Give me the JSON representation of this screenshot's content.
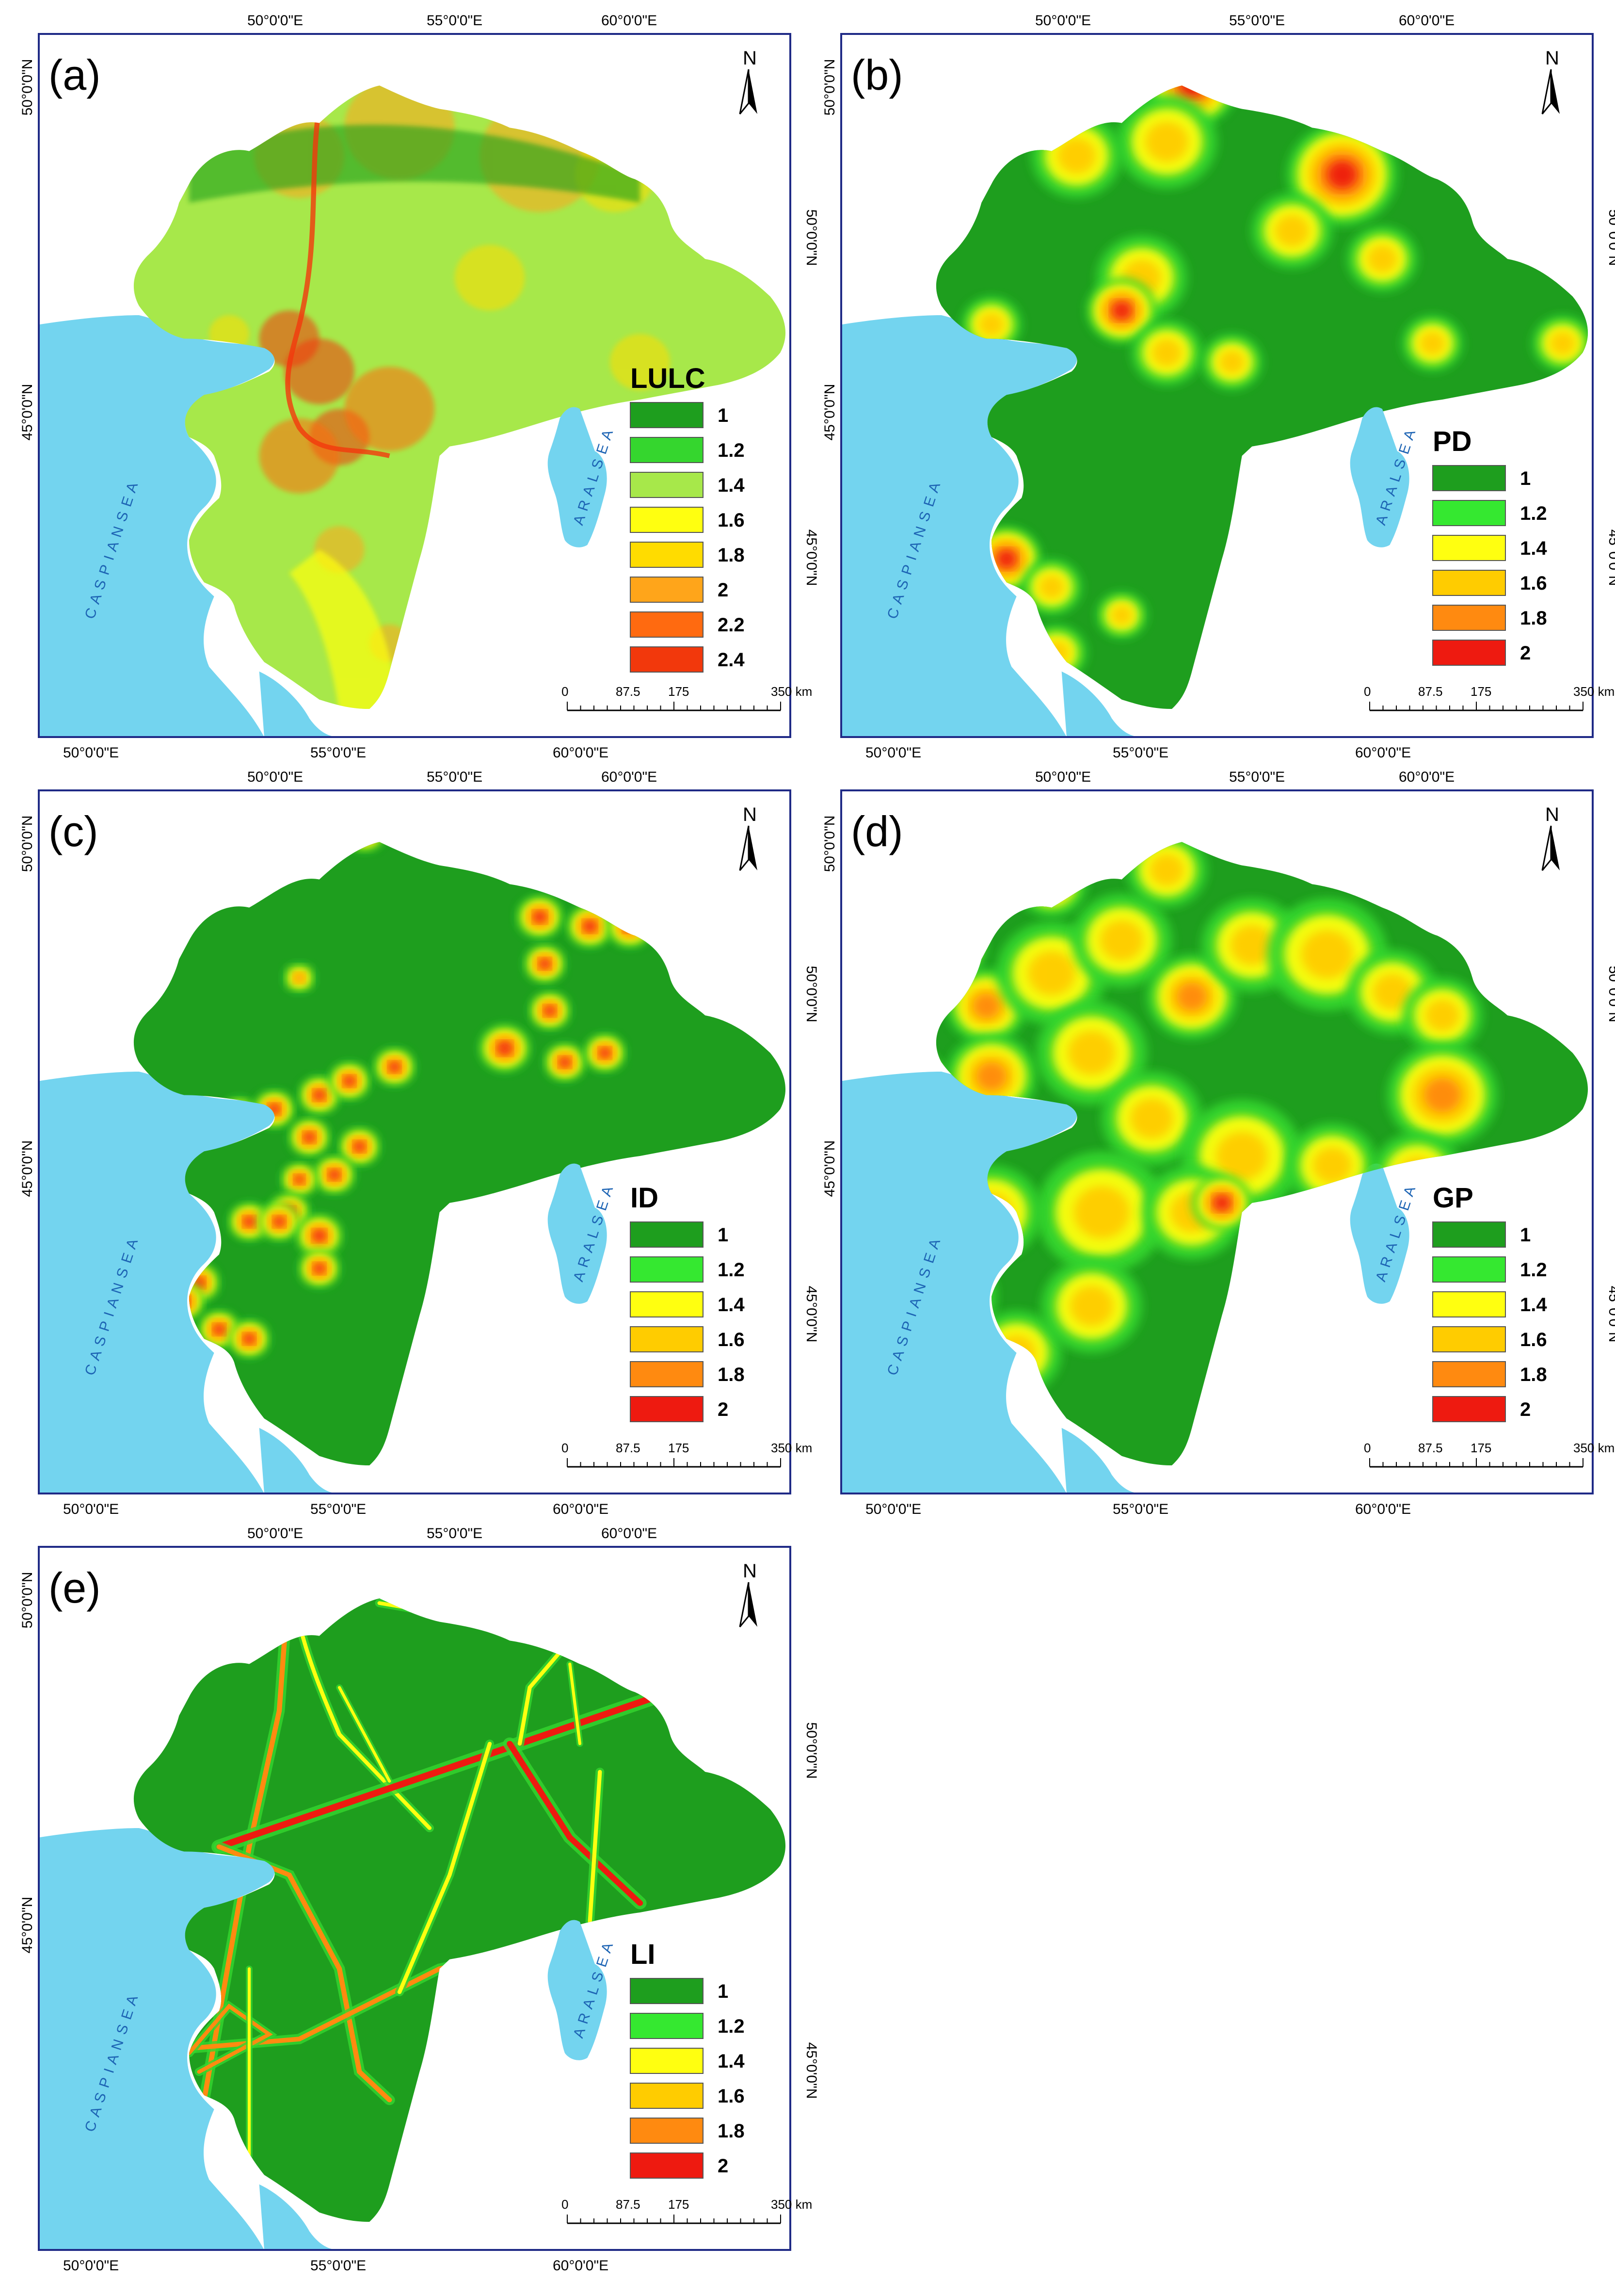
{
  "axis_labels": {
    "lon": [
      "50°0'0\"E",
      "55°0'0\"E",
      "60°0'0\"E"
    ],
    "lat": [
      "45°0'0\"N",
      "50°0'0\"N"
    ]
  },
  "labels": {
    "caspian": "C A S P I A N   S E A",
    "aral": "A R A L   S E A",
    "north": "N"
  },
  "scalebar": {
    "ticks": [
      "0",
      "87.5",
      "175",
      "350 km"
    ]
  },
  "colors": {
    "water": "#73d4ef",
    "frame": "#1f2a86",
    "dark_green": "#1e9e1e",
    "green": "#35d62e",
    "light_green": "#a7e84a",
    "yellow": "#ffff10",
    "gold": "#ffcc00",
    "orange": "#ff8a10",
    "red": "#ee1a10"
  },
  "panels": [
    {
      "id": "a",
      "label": "(a)",
      "legend_title": "LULC",
      "legend": [
        {
          "value": "1",
          "color": "#1e9e1e"
        },
        {
          "value": "1.2",
          "color": "#35d62e"
        },
        {
          "value": "1.4",
          "color": "#a7e84a"
        },
        {
          "value": "1.6",
          "color": "#ffff10"
        },
        {
          "value": "1.8",
          "color": "#ffdc00"
        },
        {
          "value": "2",
          "color": "#ffa51a"
        },
        {
          "value": "2.2",
          "color": "#ff6a10"
        },
        {
          "value": "2.4",
          "color": "#f2380c"
        }
      ]
    },
    {
      "id": "b",
      "label": "(b)",
      "legend_title": "PD",
      "legend": [
        {
          "value": "1",
          "color": "#1e9e1e"
        },
        {
          "value": "1.2",
          "color": "#35e830"
        },
        {
          "value": "1.4",
          "color": "#ffff10"
        },
        {
          "value": "1.6",
          "color": "#ffcc00"
        },
        {
          "value": "1.8",
          "color": "#ff8a10"
        },
        {
          "value": "2",
          "color": "#ee1a10"
        }
      ]
    },
    {
      "id": "c",
      "label": "(c)",
      "legend_title": "ID",
      "legend": [
        {
          "value": "1",
          "color": "#1e9e1e"
        },
        {
          "value": "1.2",
          "color": "#35e830"
        },
        {
          "value": "1.4",
          "color": "#ffff10"
        },
        {
          "value": "1.6",
          "color": "#ffcc00"
        },
        {
          "value": "1.8",
          "color": "#ff8a10"
        },
        {
          "value": "2",
          "color": "#ee1a10"
        }
      ]
    },
    {
      "id": "d",
      "label": "(d)",
      "legend_title": "GP",
      "legend": [
        {
          "value": "1",
          "color": "#1e9e1e"
        },
        {
          "value": "1.2",
          "color": "#35e830"
        },
        {
          "value": "1.4",
          "color": "#ffff10"
        },
        {
          "value": "1.6",
          "color": "#ffcc00"
        },
        {
          "value": "1.8",
          "color": "#ff8a10"
        },
        {
          "value": "2",
          "color": "#ee1a10"
        }
      ]
    },
    {
      "id": "e",
      "label": "(e)",
      "legend_title": "LI",
      "legend": [
        {
          "value": "1",
          "color": "#1e9e1e"
        },
        {
          "value": "1.2",
          "color": "#35e830"
        },
        {
          "value": "1.4",
          "color": "#ffff10"
        },
        {
          "value": "1.6",
          "color": "#ffcc00"
        },
        {
          "value": "1.8",
          "color": "#ff8a10"
        },
        {
          "value": "2",
          "color": "#ee1a10"
        }
      ]
    }
  ]
}
